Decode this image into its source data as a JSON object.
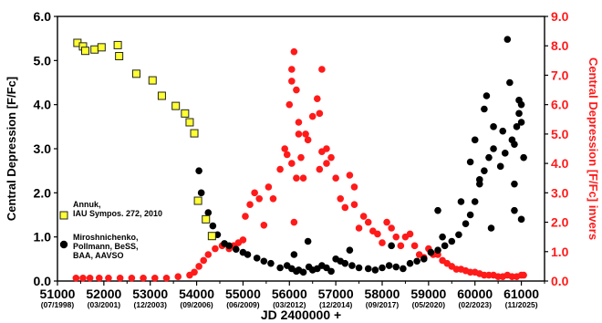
{
  "chart_data": {
    "type": "scatter",
    "title": "",
    "xlabel": "JD 2400000 +",
    "ylabel_left": "Central Depression [F/Fc]",
    "ylabel_right": "Central Depression [F/Fc] invers",
    "xlim": [
      51000,
      61500
    ],
    "ylim_left": [
      0,
      6
    ],
    "ylim_right": [
      0,
      9
    ],
    "x_ticks": [
      "51000",
      "52000",
      "53000",
      "54000",
      "55000",
      "56000",
      "57000",
      "58000",
      "59000",
      "60000",
      "61000"
    ],
    "x_dates": [
      "(07/1998)",
      "(03/2001)",
      "(12/2003)",
      "(09/2006)",
      "(06/2009)",
      "(03/2012)",
      "(12/2014)",
      "(09/2017)",
      "(05/2020)",
      "(02/2023)",
      "(11/2025)"
    ],
    "y_ticks_left": [
      "0.0",
      "1.0",
      "2.0",
      "3.0",
      "4.0",
      "5.0",
      "6.0"
    ],
    "y_ticks_right": [
      "0.0",
      "1.0",
      "2.0",
      "3.0",
      "4.0",
      "5.0",
      "6.0",
      "7.0",
      "8.0",
      "9.0"
    ],
    "grid": false,
    "legend_position": "bottom-left",
    "colors": {
      "annuk": "#ffff33",
      "annuk_edge": "#222222",
      "miro": "#000000",
      "inverse": "#ff1a1a",
      "right_axis": "#ff1a1a"
    },
    "series": [
      {
        "name": "Annuk,\nIAU Sympos. 272, 2010",
        "legend_lines": [
          "Annuk,",
          "IAU Sympos. 272, 2010"
        ],
        "marker": "square",
        "axis": "left",
        "x": [
          51430,
          51550,
          51600,
          51800,
          51950,
          52300,
          52330,
          52700,
          53050,
          53250,
          53550,
          53750,
          53850,
          53950,
          54030,
          54200,
          54330
        ],
        "y": [
          5.4,
          5.32,
          5.22,
          5.25,
          5.3,
          5.35,
          5.1,
          4.7,
          4.55,
          4.2,
          3.97,
          3.8,
          3.6,
          3.35,
          1.82,
          1.4,
          1.02
        ]
      },
      {
        "name": "Miroshnichenko,\nPollmann, BeSS,\nBAA, AAVSO",
        "legend_lines": [
          "Miroshnichenko,",
          "Pollmann, BeSS,",
          "BAA, AAVSO"
        ],
        "marker": "circle",
        "axis": "left",
        "x": [
          54050,
          54100,
          54250,
          54350,
          54450,
          54600,
          54700,
          54850,
          55000,
          55100,
          55300,
          55450,
          55600,
          55800,
          55950,
          56050,
          56150,
          56200,
          56300,
          56420,
          56500,
          56600,
          56700,
          56800,
          56900,
          57000,
          57100,
          57200,
          57350,
          57500,
          57700,
          57850,
          58000,
          58150,
          58300,
          58450,
          58600,
          58750,
          58900,
          59050,
          59200,
          59350,
          59500,
          59650,
          59800,
          59900,
          60000,
          60100,
          60200,
          60300,
          60400,
          60550,
          60650,
          60800,
          60900,
          60950,
          61000,
          61050,
          56100,
          56400,
          57300,
          58200,
          59300,
          60350,
          60850,
          61000,
          59700,
          60000,
          60200,
          60250,
          60750,
          60950,
          60700,
          60850,
          61000,
          60100,
          60400,
          59900,
          59200,
          60600,
          60850
        ],
        "y": [
          2.5,
          2.0,
          1.55,
          1.25,
          1.05,
          0.85,
          0.8,
          0.72,
          0.65,
          0.6,
          0.52,
          0.45,
          0.4,
          0.3,
          0.35,
          0.28,
          0.22,
          0.25,
          0.2,
          0.32,
          0.25,
          0.28,
          0.35,
          0.3,
          0.22,
          0.5,
          0.45,
          0.4,
          0.35,
          0.3,
          0.28,
          0.25,
          0.3,
          0.35,
          0.32,
          0.28,
          0.4,
          0.45,
          0.5,
          0.65,
          0.7,
          0.8,
          0.9,
          1.05,
          1.3,
          1.5,
          1.8,
          2.2,
          2.5,
          2.8,
          3.0,
          2.6,
          2.9,
          3.2,
          3.5,
          3.8,
          4.0,
          2.8,
          0.6,
          0.9,
          0.7,
          0.8,
          1.0,
          1.2,
          1.6,
          1.4,
          1.8,
          3.2,
          3.9,
          4.2,
          4.5,
          4.1,
          5.48,
          3.1,
          3.6,
          2.3,
          3.5,
          2.7,
          1.6,
          3.4,
          2.2
        ]
      },
      {
        "name": "",
        "marker": "circle",
        "axis": "right",
        "x": [
          51400,
          51550,
          51700,
          51900,
          52100,
          52350,
          52600,
          52850,
          53100,
          53350,
          53600,
          53850,
          53950,
          54050,
          54150,
          54250,
          54400,
          54550,
          54700,
          54800,
          54900,
          55000,
          55050,
          55150,
          55250,
          55350,
          55450,
          55550,
          55650,
          55800,
          55900,
          56000,
          56050,
          56100,
          56150,
          56200,
          56250,
          56300,
          56400,
          56500,
          56600,
          56700,
          56800,
          56900,
          57000,
          57100,
          57200,
          57300,
          57400,
          57500,
          57600,
          57700,
          57800,
          57900,
          58000,
          58100,
          58200,
          58300,
          58400,
          58500,
          58600,
          58700,
          58800,
          58900,
          59000,
          59100,
          59200,
          59300,
          59400,
          59500,
          59600,
          59700,
          59800,
          59900,
          60000,
          60100,
          60200,
          60300,
          60400,
          60500,
          60600,
          60700,
          60800,
          60900,
          61000,
          61050,
          56050,
          56150,
          56100,
          56650,
          56700,
          56800,
          57400,
          56050,
          56200,
          55950,
          56350,
          56650
        ],
        "y": [
          0.1,
          0.1,
          0.1,
          0.1,
          0.1,
          0.1,
          0.1,
          0.1,
          0.1,
          0.1,
          0.15,
          0.2,
          0.3,
          0.5,
          0.7,
          0.9,
          1.1,
          1.2,
          1.1,
          1.2,
          1.3,
          1.4,
          2.2,
          2.6,
          3.0,
          2.8,
          1.9,
          3.2,
          2.8,
          3.8,
          4.5,
          6.0,
          7.2,
          7.8,
          6.5,
          5.0,
          4.2,
          3.5,
          4.8,
          5.6,
          6.2,
          7.2,
          4.5,
          4.2,
          3.5,
          2.8,
          2.5,
          3.6,
          2.6,
          1.8,
          2.2,
          2.0,
          1.7,
          1.6,
          1.3,
          2.0,
          1.8,
          1.5,
          1.2,
          1.5,
          1.6,
          1.2,
          0.9,
          0.8,
          1.1,
          0.9,
          0.9,
          0.7,
          0.6,
          0.5,
          0.4,
          0.4,
          0.35,
          0.3,
          0.3,
          0.25,
          0.2,
          0.2,
          0.2,
          0.15,
          0.15,
          0.2,
          0.15,
          0.15,
          0.2,
          0.2,
          4.0,
          3.5,
          2.0,
          3.8,
          4.4,
          4.0,
          3.2,
          6.8,
          5.4,
          4.3,
          5.0,
          5.7
        ]
      }
    ]
  }
}
